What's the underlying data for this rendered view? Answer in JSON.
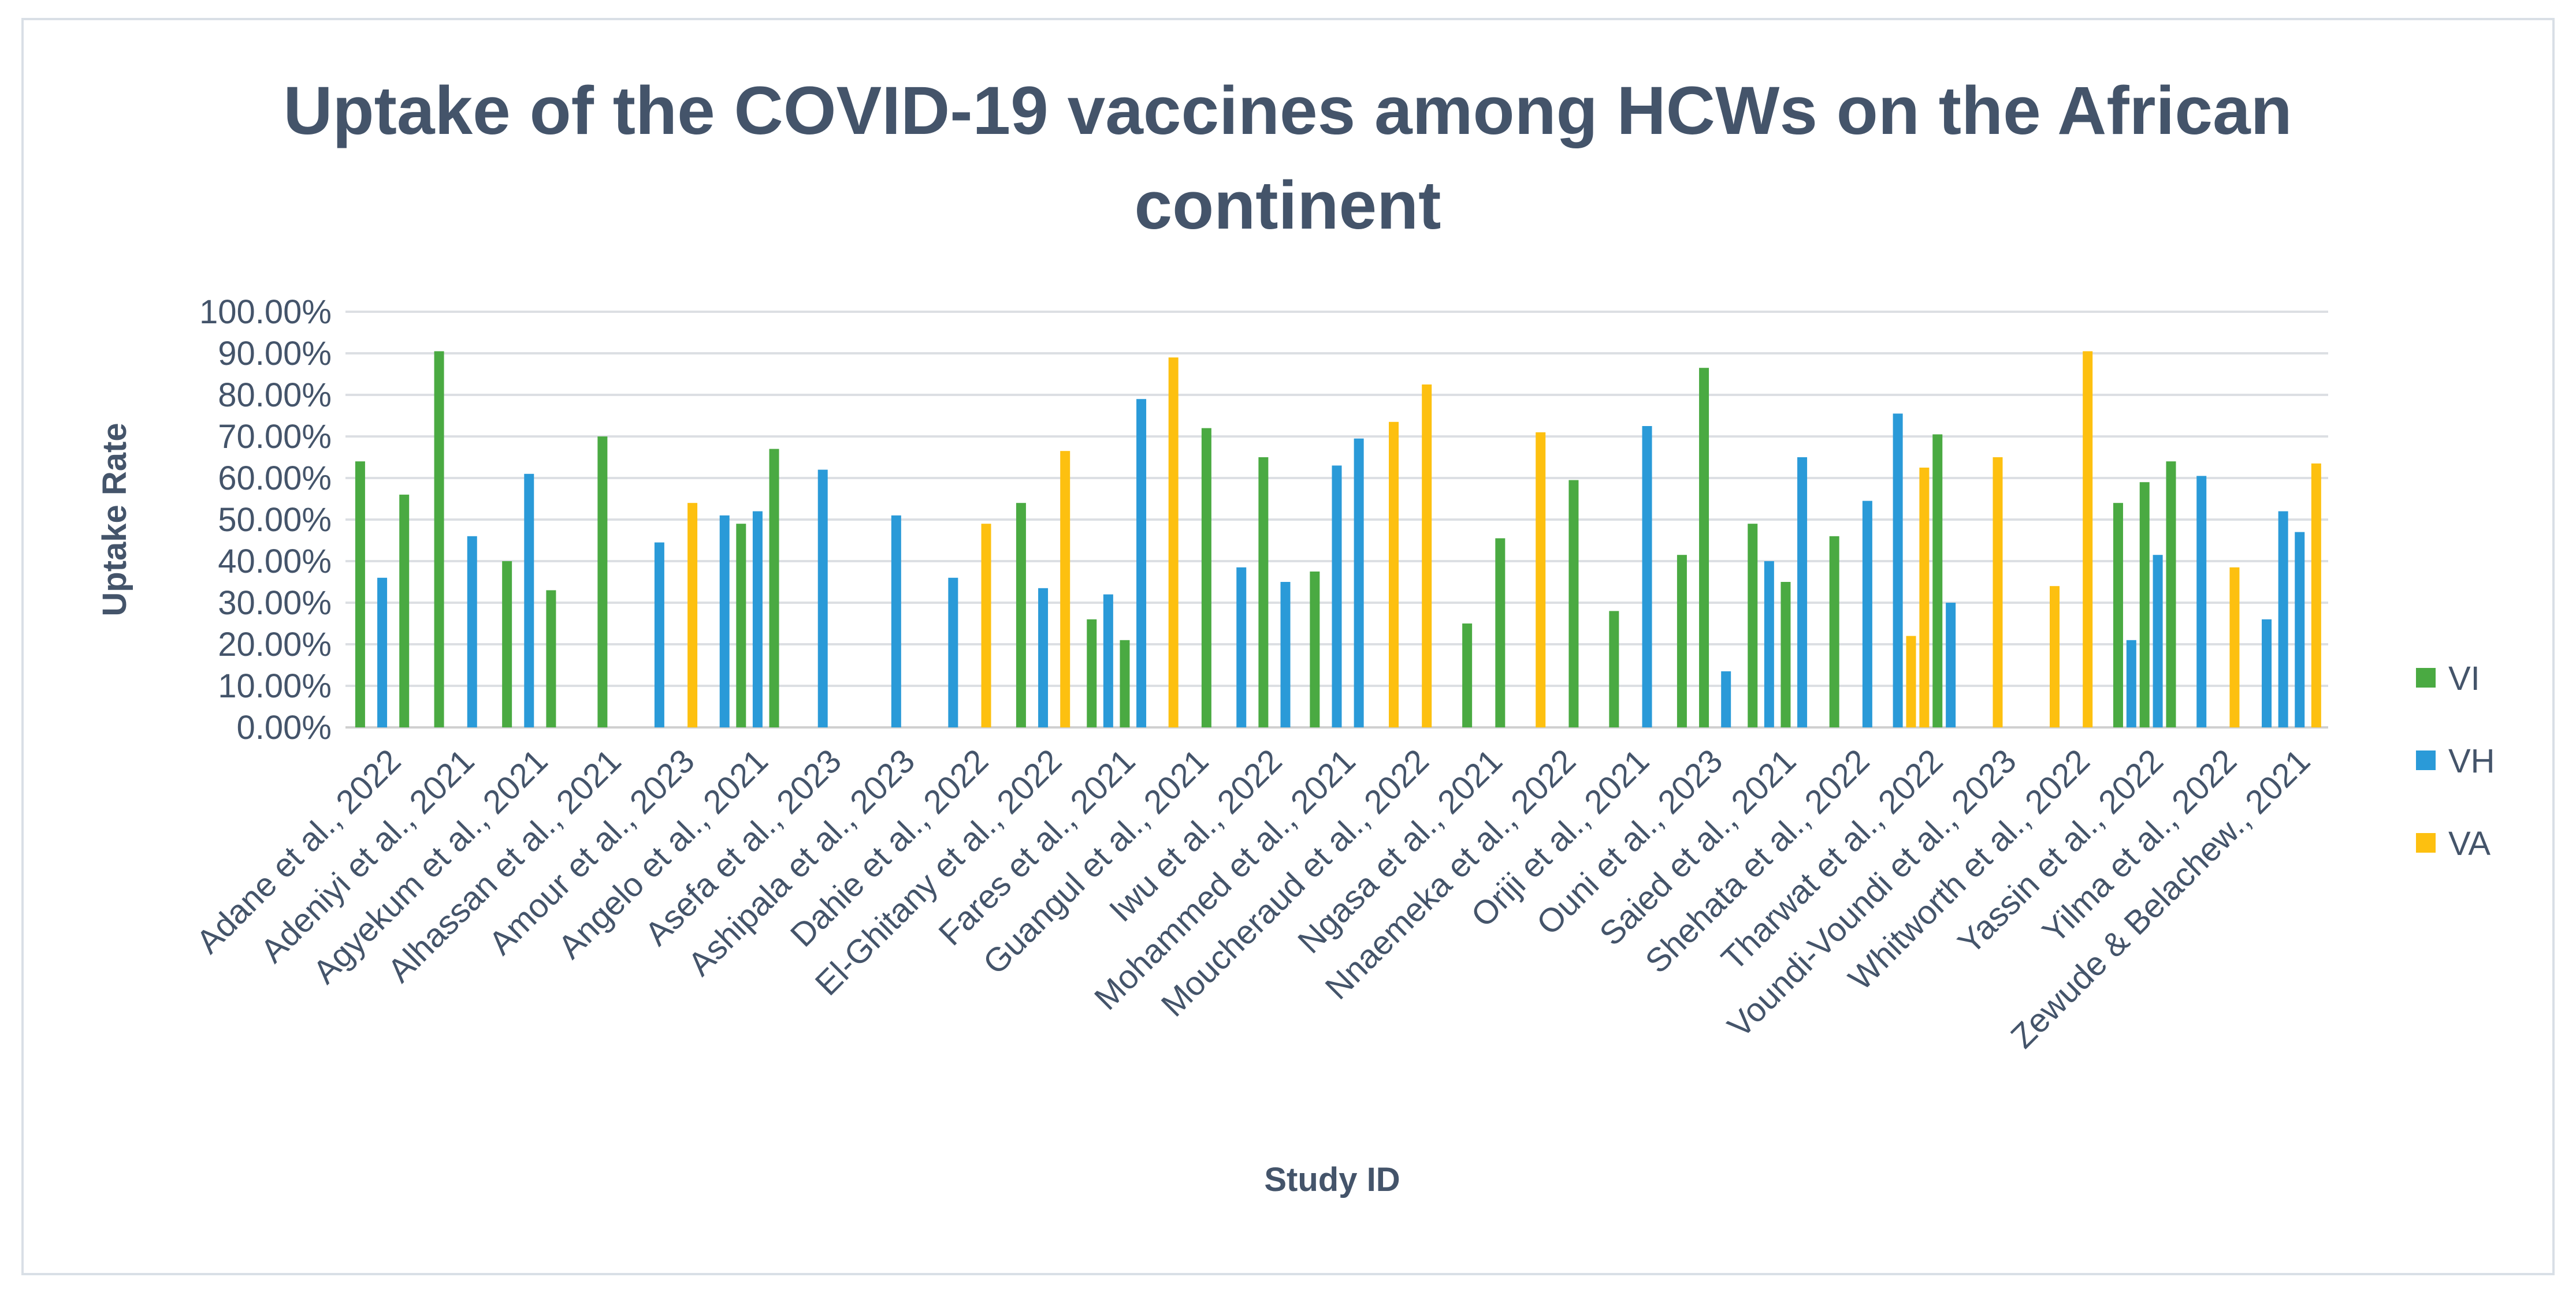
{
  "chart_data": {
    "type": "bar",
    "title": "Uptake of the COVID-19 vaccines among HCWs on the African continent",
    "title_lines": [
      "Uptake of the COVID-19 vaccines among HCWs on the African",
      "continent"
    ],
    "xlabel": "Study ID",
    "ylabel": "Uptake Rate",
    "ylim": [
      0,
      100
    ],
    "yticks": [
      "0.00%",
      "10.00%",
      "20.00%",
      "30.00%",
      "40.00%",
      "50.00%",
      "60.00%",
      "70.00%",
      "80.00%",
      "90.00%",
      "100.00%"
    ],
    "grid": true,
    "legend_position": "right",
    "colors": {
      "VI": "#4aaa42",
      "VH": "#2a9ad8",
      "VA": "#fdc010"
    },
    "categories": [
      "Adane et al., 2022",
      "Adeniyi et al., 2021",
      "Agyekum et al., 2021",
      "Alhassan et al., 2021",
      "Amour et al., 2023",
      "Angelo et al., 2021",
      "Asefa et al., 2023",
      "Ashipala et al., 2023",
      "Dahie et al., 2022",
      "El-Ghitany et al., 2022",
      "Fares et al., 2021",
      "Guangul et al., 2021",
      "Iwu et al., 2022",
      "Mohammed et al., 2021",
      "Moucheraud et al., 2022",
      "Ngasa et al., 2021",
      "Nnaemeka et al., 2022",
      "Oriji et al., 2021",
      "Ouni et al., 2023",
      "Saied et al., 2021",
      "Shehata et al., 2022",
      "Tharwat et al., 2022",
      "Voundi-Voundi et al., 2023",
      "Whitworth et al., 2022",
      "Yassin et al., 2022",
      "Yilma et al., 2022",
      "Zewude & Belachew., 2021"
    ],
    "groups": [
      [
        {
          "series": "VI",
          "value": 64
        },
        {
          "series": "VH",
          "value": 36
        },
        {
          "series": "VI",
          "value": 56
        }
      ],
      [
        {
          "series": "VI",
          "value": 90.5
        },
        {
          "series": "VH",
          "value": 46
        }
      ],
      [
        {
          "series": "VI",
          "value": 40
        },
        {
          "series": "VH",
          "value": 61
        },
        {
          "series": "VI",
          "value": 33
        }
      ],
      [
        {
          "series": "VI",
          "value": 70
        }
      ],
      [
        {
          "series": "VH",
          "value": 44.5
        },
        {
          "series": "VA",
          "value": 54
        }
      ],
      [
        {
          "series": "VH",
          "value": 51
        },
        {
          "series": "VI",
          "value": 49
        },
        {
          "series": "VH",
          "value": 52
        },
        {
          "series": "VI",
          "value": 67
        }
      ],
      [
        {
          "series": "VH",
          "value": 62
        }
      ],
      [
        {
          "series": "VH",
          "value": 51
        }
      ],
      [
        {
          "series": "VH",
          "value": 36
        },
        {
          "series": "VA",
          "value": 49
        }
      ],
      [
        {
          "series": "VI",
          "value": 54
        },
        {
          "series": "VH",
          "value": 33.5
        },
        {
          "series": "VA",
          "value": 66.5
        }
      ],
      [
        {
          "series": "VI",
          "value": 26
        },
        {
          "series": "VH",
          "value": 32
        },
        {
          "series": "VI",
          "value": 21
        },
        {
          "series": "VH",
          "value": 79
        }
      ],
      [
        {
          "series": "VA",
          "value": 89
        },
        {
          "series": "VI",
          "value": 72
        }
      ],
      [
        {
          "series": "VH",
          "value": 38.5
        },
        {
          "series": "VI",
          "value": 65
        },
        {
          "series": "VH",
          "value": 35
        }
      ],
      [
        {
          "series": "VI",
          "value": 37.5
        },
        {
          "series": "VH",
          "value": 63
        },
        {
          "series": "VH",
          "value": 69.5
        }
      ],
      [
        {
          "series": "VA",
          "value": 73.5
        },
        {
          "series": "VA",
          "value": 82.5
        }
      ],
      [
        {
          "series": "VI",
          "value": 25
        },
        {
          "series": "VI",
          "value": 45.5
        }
      ],
      [
        {
          "series": "VA",
          "value": 71
        },
        {
          "series": "VI",
          "value": 59.5
        }
      ],
      [
        {
          "series": "VI",
          "value": 28
        },
        {
          "series": "VH",
          "value": 72.5
        }
      ],
      [
        {
          "series": "VI",
          "value": 41.5
        },
        {
          "series": "VI",
          "value": 86.5
        },
        {
          "series": "VH",
          "value": 13.5
        }
      ],
      [
        {
          "series": "VI",
          "value": 49
        },
        {
          "series": "VH",
          "value": 40
        },
        {
          "series": "VI",
          "value": 35
        },
        {
          "series": "VH",
          "value": 65
        }
      ],
      [
        {
          "series": "VI",
          "value": 46
        },
        {
          "series": "VH",
          "value": 54.5
        }
      ],
      [
        {
          "series": "VH",
          "value": 75.5
        },
        {
          "series": "VA",
          "value": 22
        },
        {
          "series": "VA",
          "value": 62.5
        },
        {
          "series": "VI",
          "value": 70.5
        },
        {
          "series": "VH",
          "value": 30
        }
      ],
      [
        {
          "series": "VA",
          "value": 65
        }
      ],
      [
        {
          "series": "VA",
          "value": 34
        },
        {
          "series": "VA",
          "value": 90.5
        }
      ],
      [
        {
          "series": "VI",
          "value": 54
        },
        {
          "series": "VH",
          "value": 21
        },
        {
          "series": "VI",
          "value": 59
        },
        {
          "series": "VH",
          "value": 41.5
        },
        {
          "series": "VI",
          "value": 64
        }
      ],
      [
        {
          "series": "VH",
          "value": 60.5
        },
        {
          "series": "VA",
          "value": 38.5
        }
      ],
      [
        {
          "series": "VH",
          "value": 26
        },
        {
          "series": "VH",
          "value": 52
        },
        {
          "series": "VH",
          "value": 47
        },
        {
          "series": "VA",
          "value": 63.5
        }
      ]
    ],
    "legend": [
      "VI",
      "VH",
      "VA"
    ]
  }
}
